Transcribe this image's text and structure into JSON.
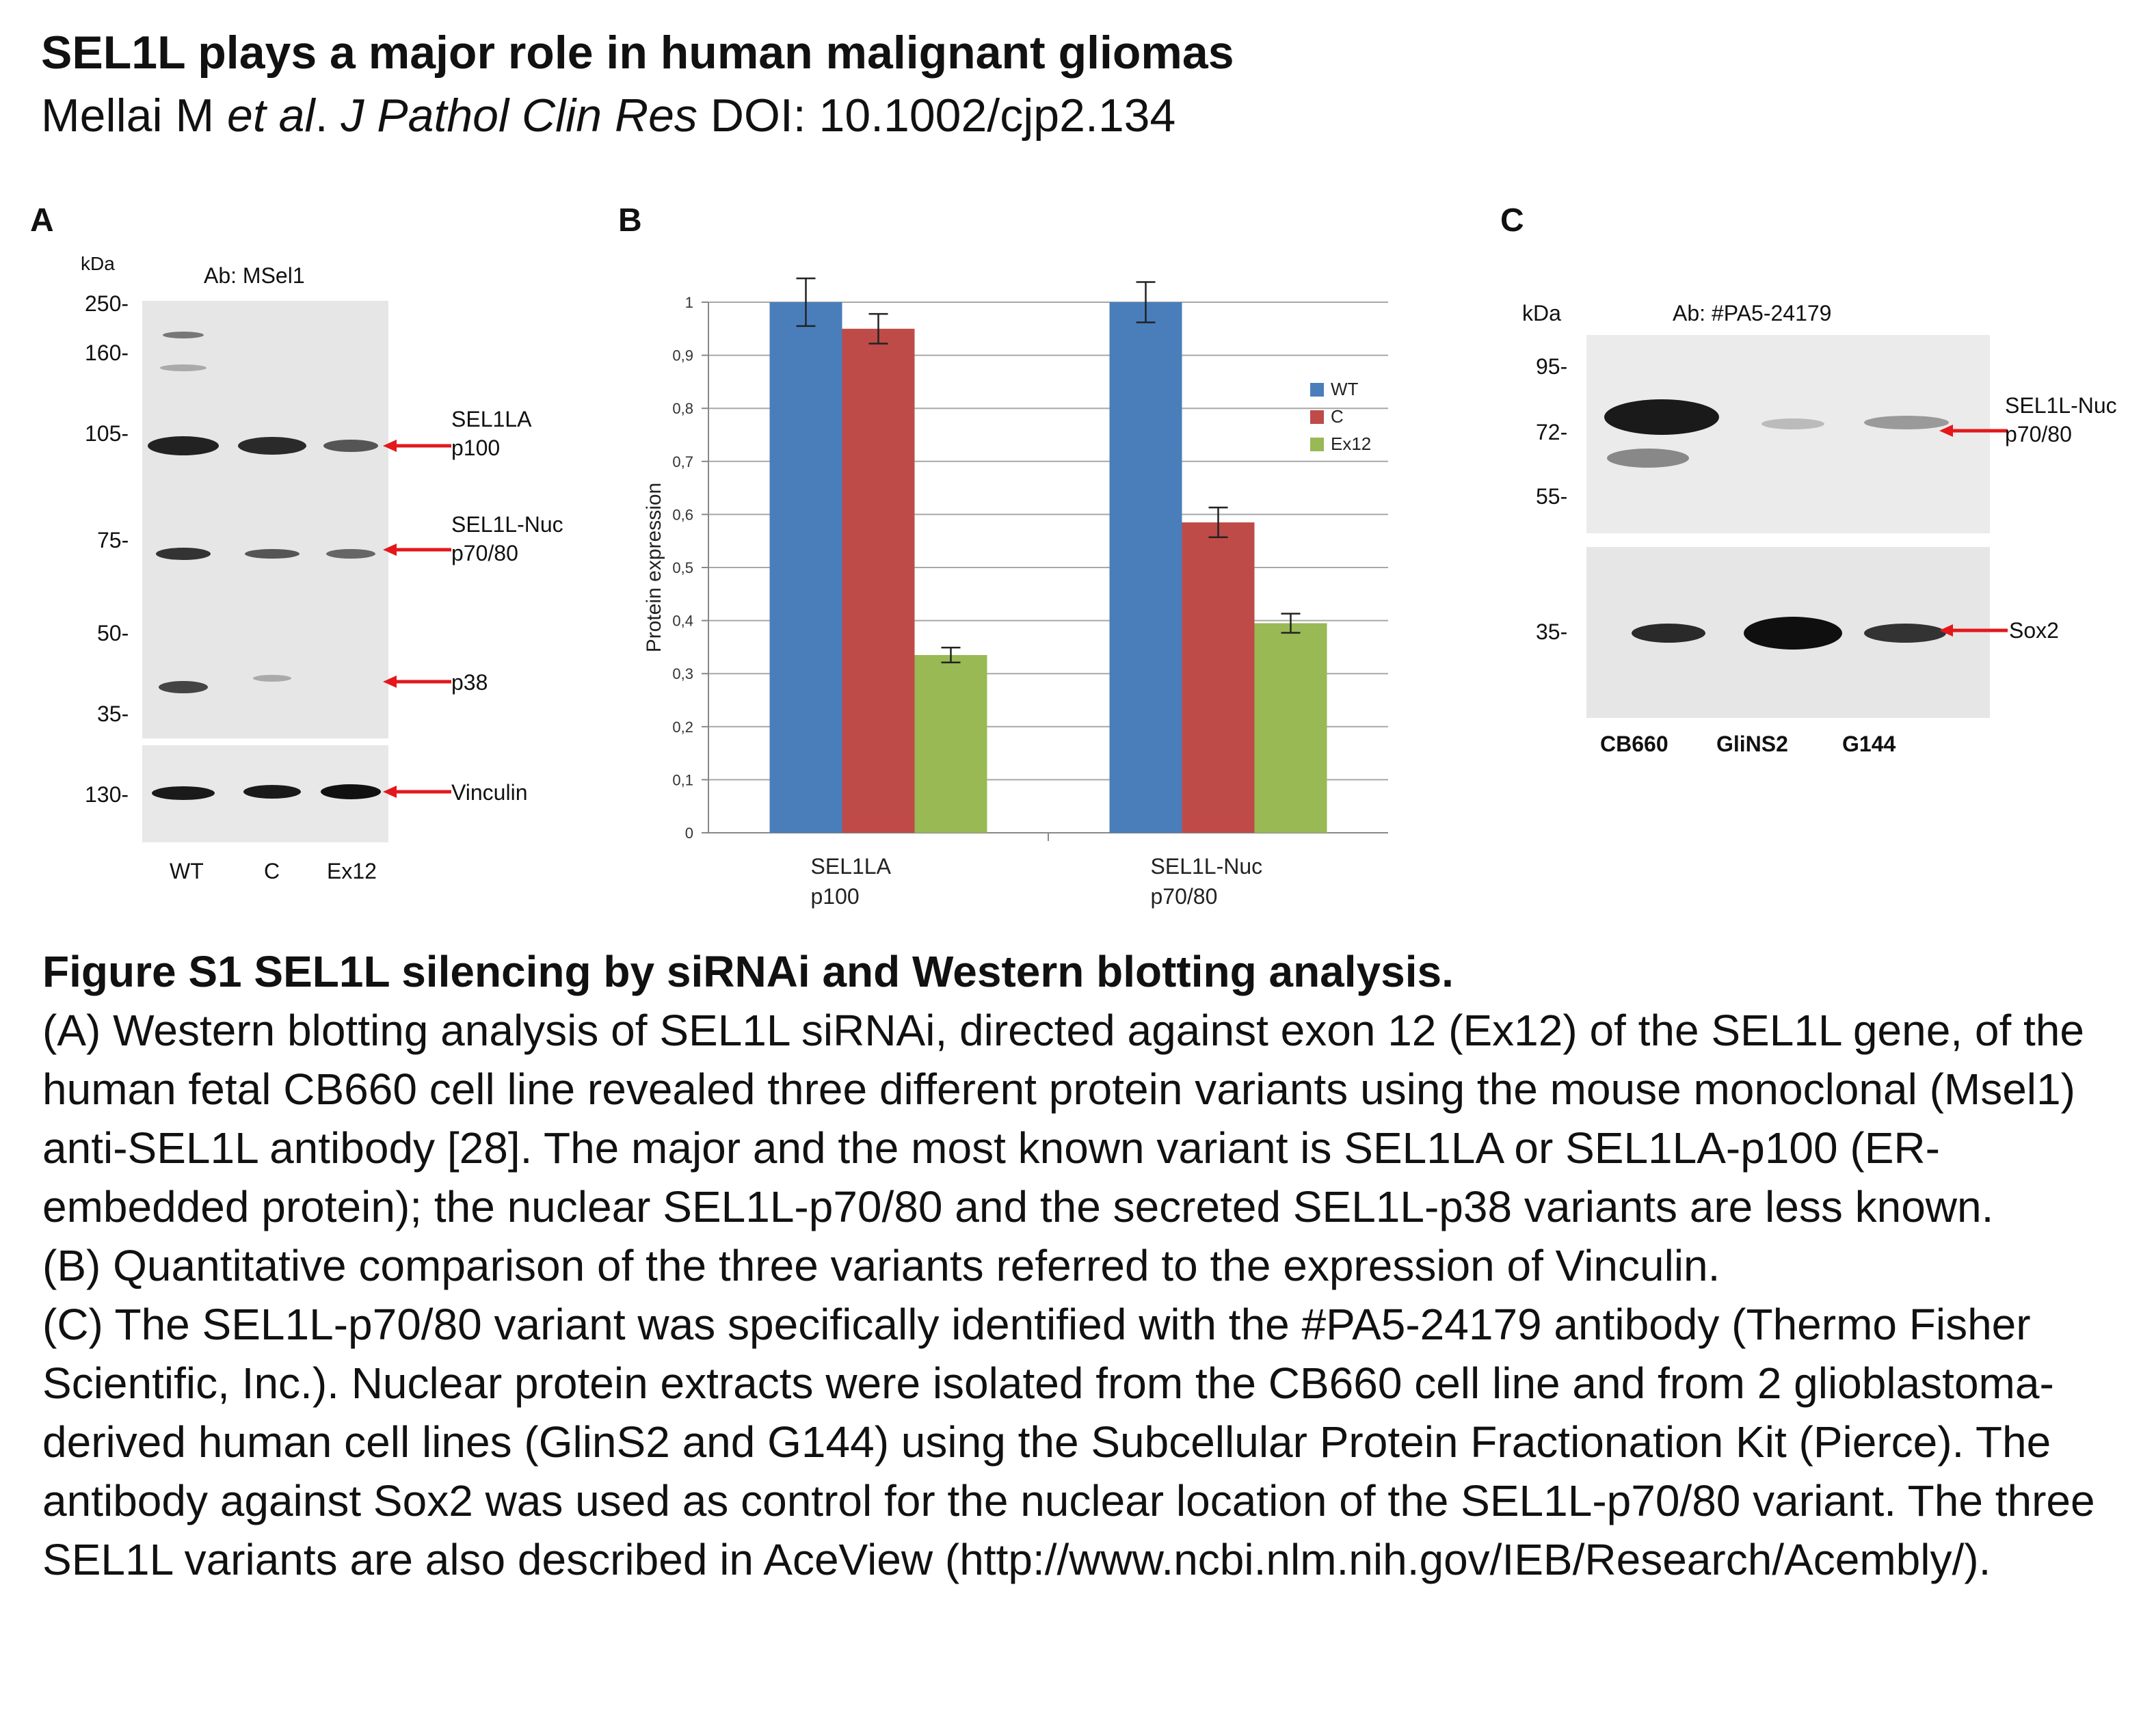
{
  "header": {
    "title": "SEL1L plays a major role in human malignant gliomas",
    "citation_author": "Mellai M ",
    "citation_etal": "et al",
    "citation_dot": ". ",
    "citation_journal": "J Pathol Clin Res",
    "citation_doi": " DOI: 10.1002/cjp2.134"
  },
  "panel_a": {
    "letter": "A",
    "kda_label": "kDa",
    "antibody": "Ab: MSel1",
    "markers": [
      "250-",
      "160-",
      "105-",
      "75-",
      "50-",
      "35-"
    ],
    "vinculin_marker": "130-",
    "bands": [
      {
        "line1": "SEL1LA",
        "line2": "p100"
      },
      {
        "line1": "SEL1L-Nuc",
        "line2": "p70/80"
      },
      {
        "line1": "p38",
        "line2": ""
      },
      {
        "line1": "Vinculin",
        "line2": ""
      }
    ],
    "lanes": [
      "WT",
      "C",
      "Ex12"
    ]
  },
  "panel_b": {
    "letter": "B"
  },
  "chart_data": {
    "type": "bar",
    "categories": [
      [
        "SEL1LA",
        "p100"
      ],
      [
        "SEL1L-Nuc",
        "p70/80"
      ]
    ],
    "series": [
      {
        "name": "WT",
        "values": [
          1.0,
          1.0
        ],
        "errors": [
          0.045,
          0.038
        ],
        "color": "#4a7ebb"
      },
      {
        "name": "C",
        "values": [
          0.95,
          0.585
        ],
        "errors": [
          0.028,
          0.028
        ],
        "color": "#be4b48"
      },
      {
        "name": "Ex12",
        "values": [
          0.335,
          0.395
        ],
        "errors": [
          0.014,
          0.018
        ],
        "color": "#98b954"
      }
    ],
    "ylabel": "Protein expression",
    "ylim": [
      0,
      1
    ],
    "yticks": [
      "0",
      "0,1",
      "0,2",
      "0,3",
      "0,4",
      "0,5",
      "0,6",
      "0,7",
      "0,8",
      "0,9",
      "1"
    ],
    "grid": true,
    "legend": "right"
  },
  "panel_c": {
    "letter": "C",
    "kda_label": "kDa",
    "antibody": "Ab: #PA5-24179",
    "markers": [
      "95-",
      "72-",
      "55-"
    ],
    "sox2_marker": "35-",
    "bands": [
      {
        "line1": "SEL1L-Nuc",
        "line2": "p70/80"
      },
      {
        "line1": "Sox2",
        "line2": ""
      }
    ],
    "lanes": [
      "CB660",
      "GliNS2",
      "G144"
    ]
  },
  "caption": {
    "title": "Figure S1 SEL1L silencing by siRNAi and Western blotting analysis.",
    "para_a": "(A) Western blotting analysis of SEL1L siRNAi, directed against exon 12 (Ex12) of the SEL1L gene, of the human fetal CB660 cell line revealed three different protein variants using the mouse monoclonal (Msel1) anti-SEL1L antibody [28]. The major and the most known variant is SEL1LA or SEL1LA-p100 (ER-embedded protein); the nuclear SEL1L-p70/80 and the secreted SEL1L-p38 variants are less known.",
    "para_b": "(B) Quantitative comparison of the three variants referred to the expression of Vinculin.",
    "para_c": "(C) The SEL1L-p70/80 variant was specifically identified with the #PA5-24179 antibody (Thermo Fisher Scientific, Inc.). Nuclear protein extracts were isolated from the CB660 cell line and from 2 glioblastoma-derived human cell lines (GlinS2 and G144) using the Subcellular Protein Fractionation Kit (Pierce). The antibody against Sox2 was used as control for the nuclear location of the SEL1L-p70/80 variant. The three SEL1L variants are also described in AceView (http://www.ncbi.nlm.nih.gov/IEB/Research/Acembly/)."
  }
}
